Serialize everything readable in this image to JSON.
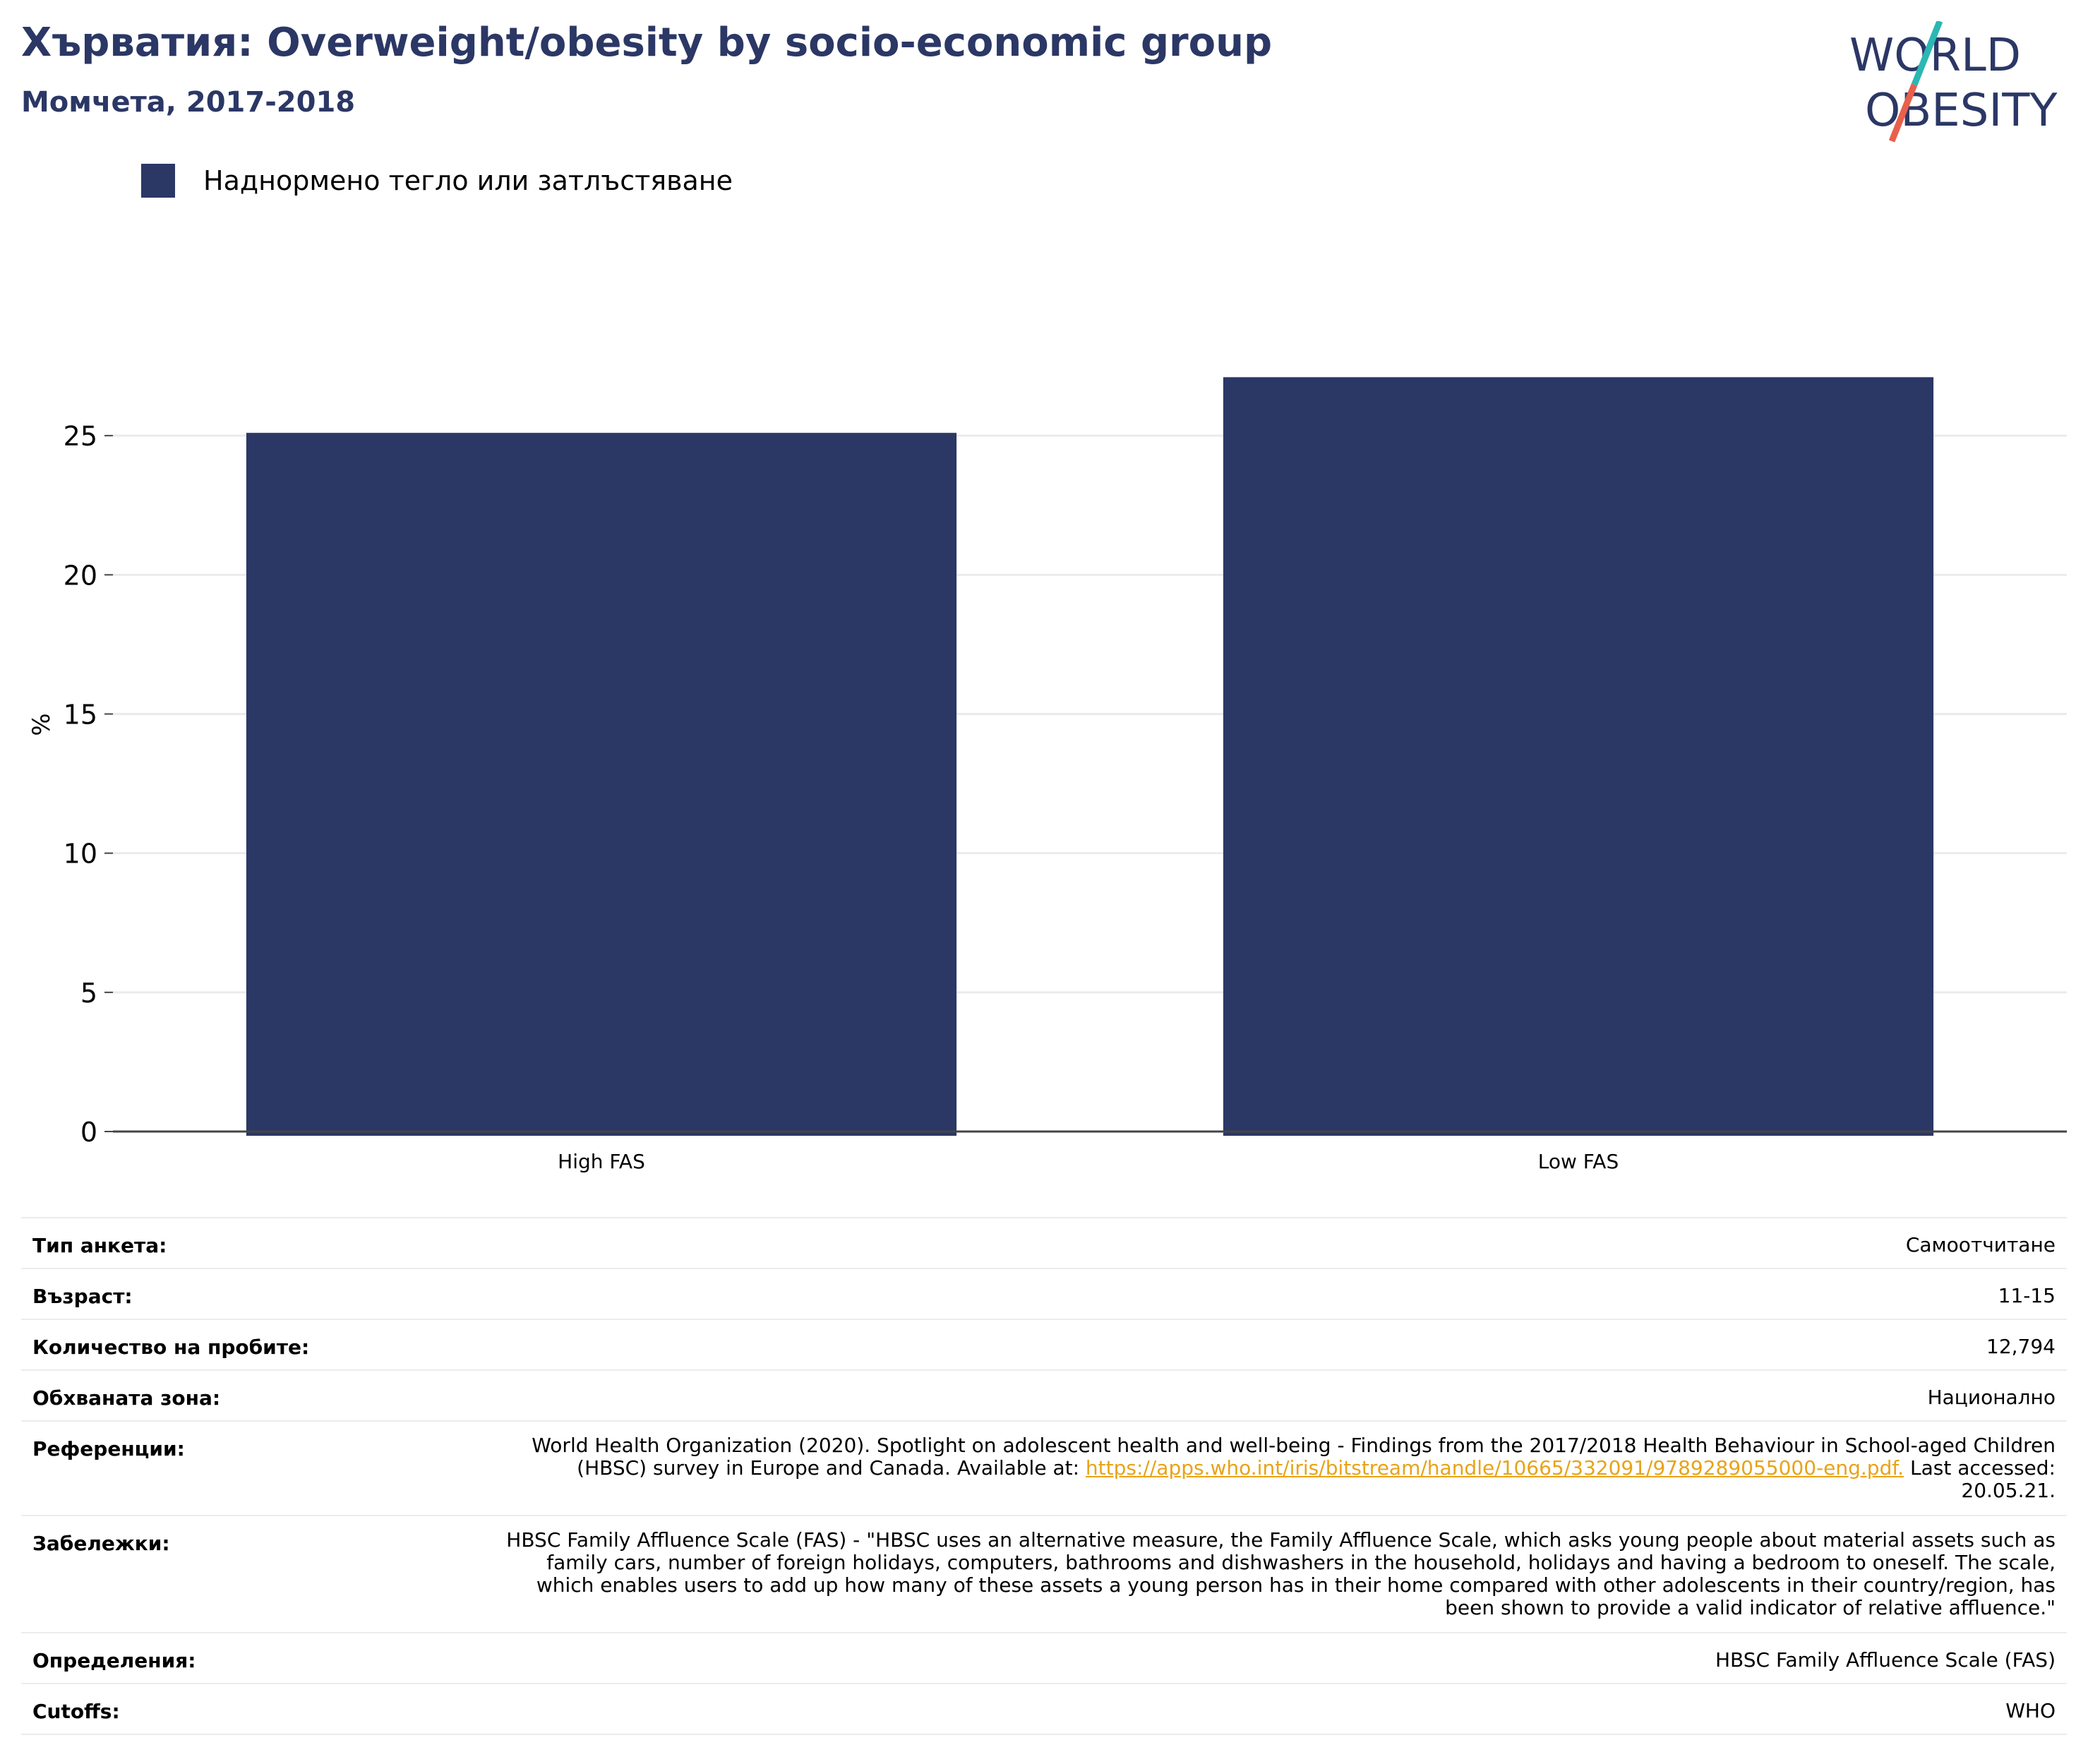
{
  "header": {
    "title": "Хърватия: Overweight/obesity by socio-economic group",
    "subtitle": "Момчета, 2017-2018"
  },
  "logo": {
    "line1": "WORLD",
    "line2": "OBESITY",
    "colors": {
      "text": "#2b3765",
      "slash_top": "#2bb7b3",
      "slash_bottom": "#e8604c"
    }
  },
  "legend": {
    "label": "Наднормено тегло или затлъстяване",
    "color": "#2b3765"
  },
  "chart_data": {
    "type": "bar",
    "categories": [
      "High FAS",
      "Low FAS"
    ],
    "series": [
      {
        "name": "Наднормено тегло или затлъстяване",
        "values": [
          25.1,
          27.1
        ],
        "color": "#2b3765"
      }
    ],
    "ylabel": "%",
    "xlabel": "",
    "ylim": [
      0,
      30
    ],
    "yticks": [
      0,
      5,
      10,
      15,
      20,
      25
    ],
    "grid": true,
    "legend_position": "top-left"
  },
  "info": {
    "survey_type": {
      "label": "Тип анкета:",
      "value": "Самоотчитане"
    },
    "age": {
      "label": "Възраст:",
      "value": "11-15"
    },
    "sample_size": {
      "label": "Количество на пробите:",
      "value": "12,794"
    },
    "area": {
      "label": "Обхваната зона:",
      "value": "Национално"
    },
    "references": {
      "label": "Референции:",
      "text_before": "World Health Organization (2020). Spotlight on adolescent health and well-being - Findings from the 2017/2018 Health Behaviour in School-aged Children (HBSC) survey in Europe and Canada. Available at: ",
      "link": "https://apps.who.int/iris/bitstream/handle/10665/332091/9789289055000-eng.pdf.",
      "text_after": " Last accessed: 20.05.21."
    },
    "notes": {
      "label": "Забележки:",
      "value": "HBSC Family Affluence Scale (FAS) - \"HBSC uses an alternative measure, the Family Affluence Scale, which asks young people about material assets such as family cars, number of foreign holidays, computers, bathrooms and dishwashers in the household, holidays and having a bedroom to oneself. The scale, which enables users to add up how many of these assets a young person has in their home compared with other adolescents in their country/region, has been shown to provide a valid indicator of relative affluence.\""
    },
    "definitions": {
      "label": "Определения:",
      "value": "HBSC Family Affluence Scale (FAS)"
    },
    "cutoffs": {
      "label": "Cutoffs:",
      "value": "WHO"
    }
  }
}
